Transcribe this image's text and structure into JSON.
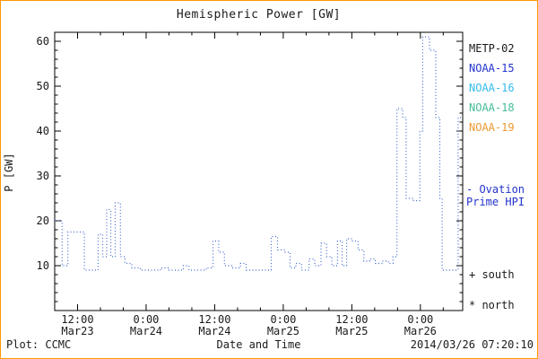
{
  "chart_data": {
    "type": "line",
    "title": "Hemispheric Power [GW]",
    "xlabel": "Date and Time",
    "ylabel": "P [GW]",
    "ylim": [
      0,
      62
    ],
    "y_ticks": [
      10,
      20,
      30,
      40,
      50,
      60
    ],
    "x_unit": "hours since 2014-03-23 00:00 UT",
    "xlim": [
      8,
      79.4
    ],
    "x_ticks": [
      {
        "hour": 12,
        "time": "12:00",
        "date": "Mar23"
      },
      {
        "hour": 24,
        "time": "0:00",
        "date": "Mar24"
      },
      {
        "hour": 36,
        "time": "12:00",
        "date": "Mar24"
      },
      {
        "hour": 48,
        "time": "0:00",
        "date": "Mar25"
      },
      {
        "hour": 60,
        "time": "12:00",
        "date": "Mar25"
      },
      {
        "hour": 72,
        "time": "0:00",
        "date": "Mar26"
      }
    ],
    "grid": false,
    "legend_position": "right",
    "series": [
      {
        "name": "Ovation Prime HPI",
        "color": "#4169cd",
        "line_style": "dotted",
        "draw": "steps-post",
        "points": [
          [
            8,
            20
          ],
          [
            9.3,
            10
          ],
          [
            10.3,
            17.5
          ],
          [
            13.2,
            9
          ],
          [
            15.6,
            17
          ],
          [
            16.4,
            12
          ],
          [
            17.1,
            22.5
          ],
          [
            17.8,
            12
          ],
          [
            18.6,
            24
          ],
          [
            19.5,
            12
          ],
          [
            20.3,
            10.5
          ],
          [
            21.5,
            9.5
          ],
          [
            23,
            9
          ],
          [
            26.5,
            9.5
          ],
          [
            28,
            9
          ],
          [
            30.5,
            10
          ],
          [
            31.5,
            9
          ],
          [
            34.5,
            9.5
          ],
          [
            35.7,
            15.5
          ],
          [
            36.7,
            13
          ],
          [
            37.7,
            10
          ],
          [
            39,
            9.5
          ],
          [
            40.5,
            10.5
          ],
          [
            41.5,
            9
          ],
          [
            45.9,
            16.5
          ],
          [
            47,
            13.5
          ],
          [
            48.3,
            13
          ],
          [
            49.2,
            9.5
          ],
          [
            50.2,
            10.5
          ],
          [
            51.2,
            9
          ],
          [
            52.5,
            11.5
          ],
          [
            53.5,
            10
          ],
          [
            54.6,
            15
          ],
          [
            55.6,
            12
          ],
          [
            56.5,
            10
          ],
          [
            57.5,
            15.5
          ],
          [
            58.3,
            10
          ],
          [
            59.1,
            16
          ],
          [
            60.1,
            15.5
          ],
          [
            61.1,
            13.5
          ],
          [
            62.1,
            11
          ],
          [
            63.1,
            11.5
          ],
          [
            64.1,
            10.5
          ],
          [
            65.3,
            11
          ],
          [
            66.4,
            10.5
          ],
          [
            67.2,
            12
          ],
          [
            67.9,
            45
          ],
          [
            68.9,
            43
          ],
          [
            69.5,
            25
          ],
          [
            70.8,
            24.5
          ],
          [
            71.9,
            40
          ],
          [
            72.4,
            61
          ],
          [
            73.6,
            58
          ],
          [
            74.7,
            43
          ],
          [
            75.4,
            25
          ],
          [
            75.8,
            9
          ],
          [
            78.6,
            43
          ]
        ]
      }
    ]
  },
  "legend": {
    "satellites": [
      {
        "label": "METP-02",
        "color": "#1a1a1a"
      },
      {
        "label": "NOAA-15",
        "color": "#2233cc"
      },
      {
        "label": "NOAA-16",
        "color": "#33bbee"
      },
      {
        "label": "NOAA-18",
        "color": "#44bb99"
      },
      {
        "label": "NOAA-19",
        "color": "#ee9933"
      }
    ],
    "line_entry": {
      "label_line1": "- Ovation",
      "label_line2": "Prime HPI",
      "color": "#2233cc"
    },
    "markers": [
      {
        "symbol": "+",
        "label": "south"
      },
      {
        "symbol": "*",
        "label": "north"
      }
    ]
  },
  "footer": {
    "left": "Plot: CCMC",
    "right": "2014/03/26 07:20:10"
  },
  "colors": {
    "frame": "#ff9900",
    "axis": "#000000",
    "text": "#1a1a1a",
    "hpi_line": "#4169cd"
  }
}
